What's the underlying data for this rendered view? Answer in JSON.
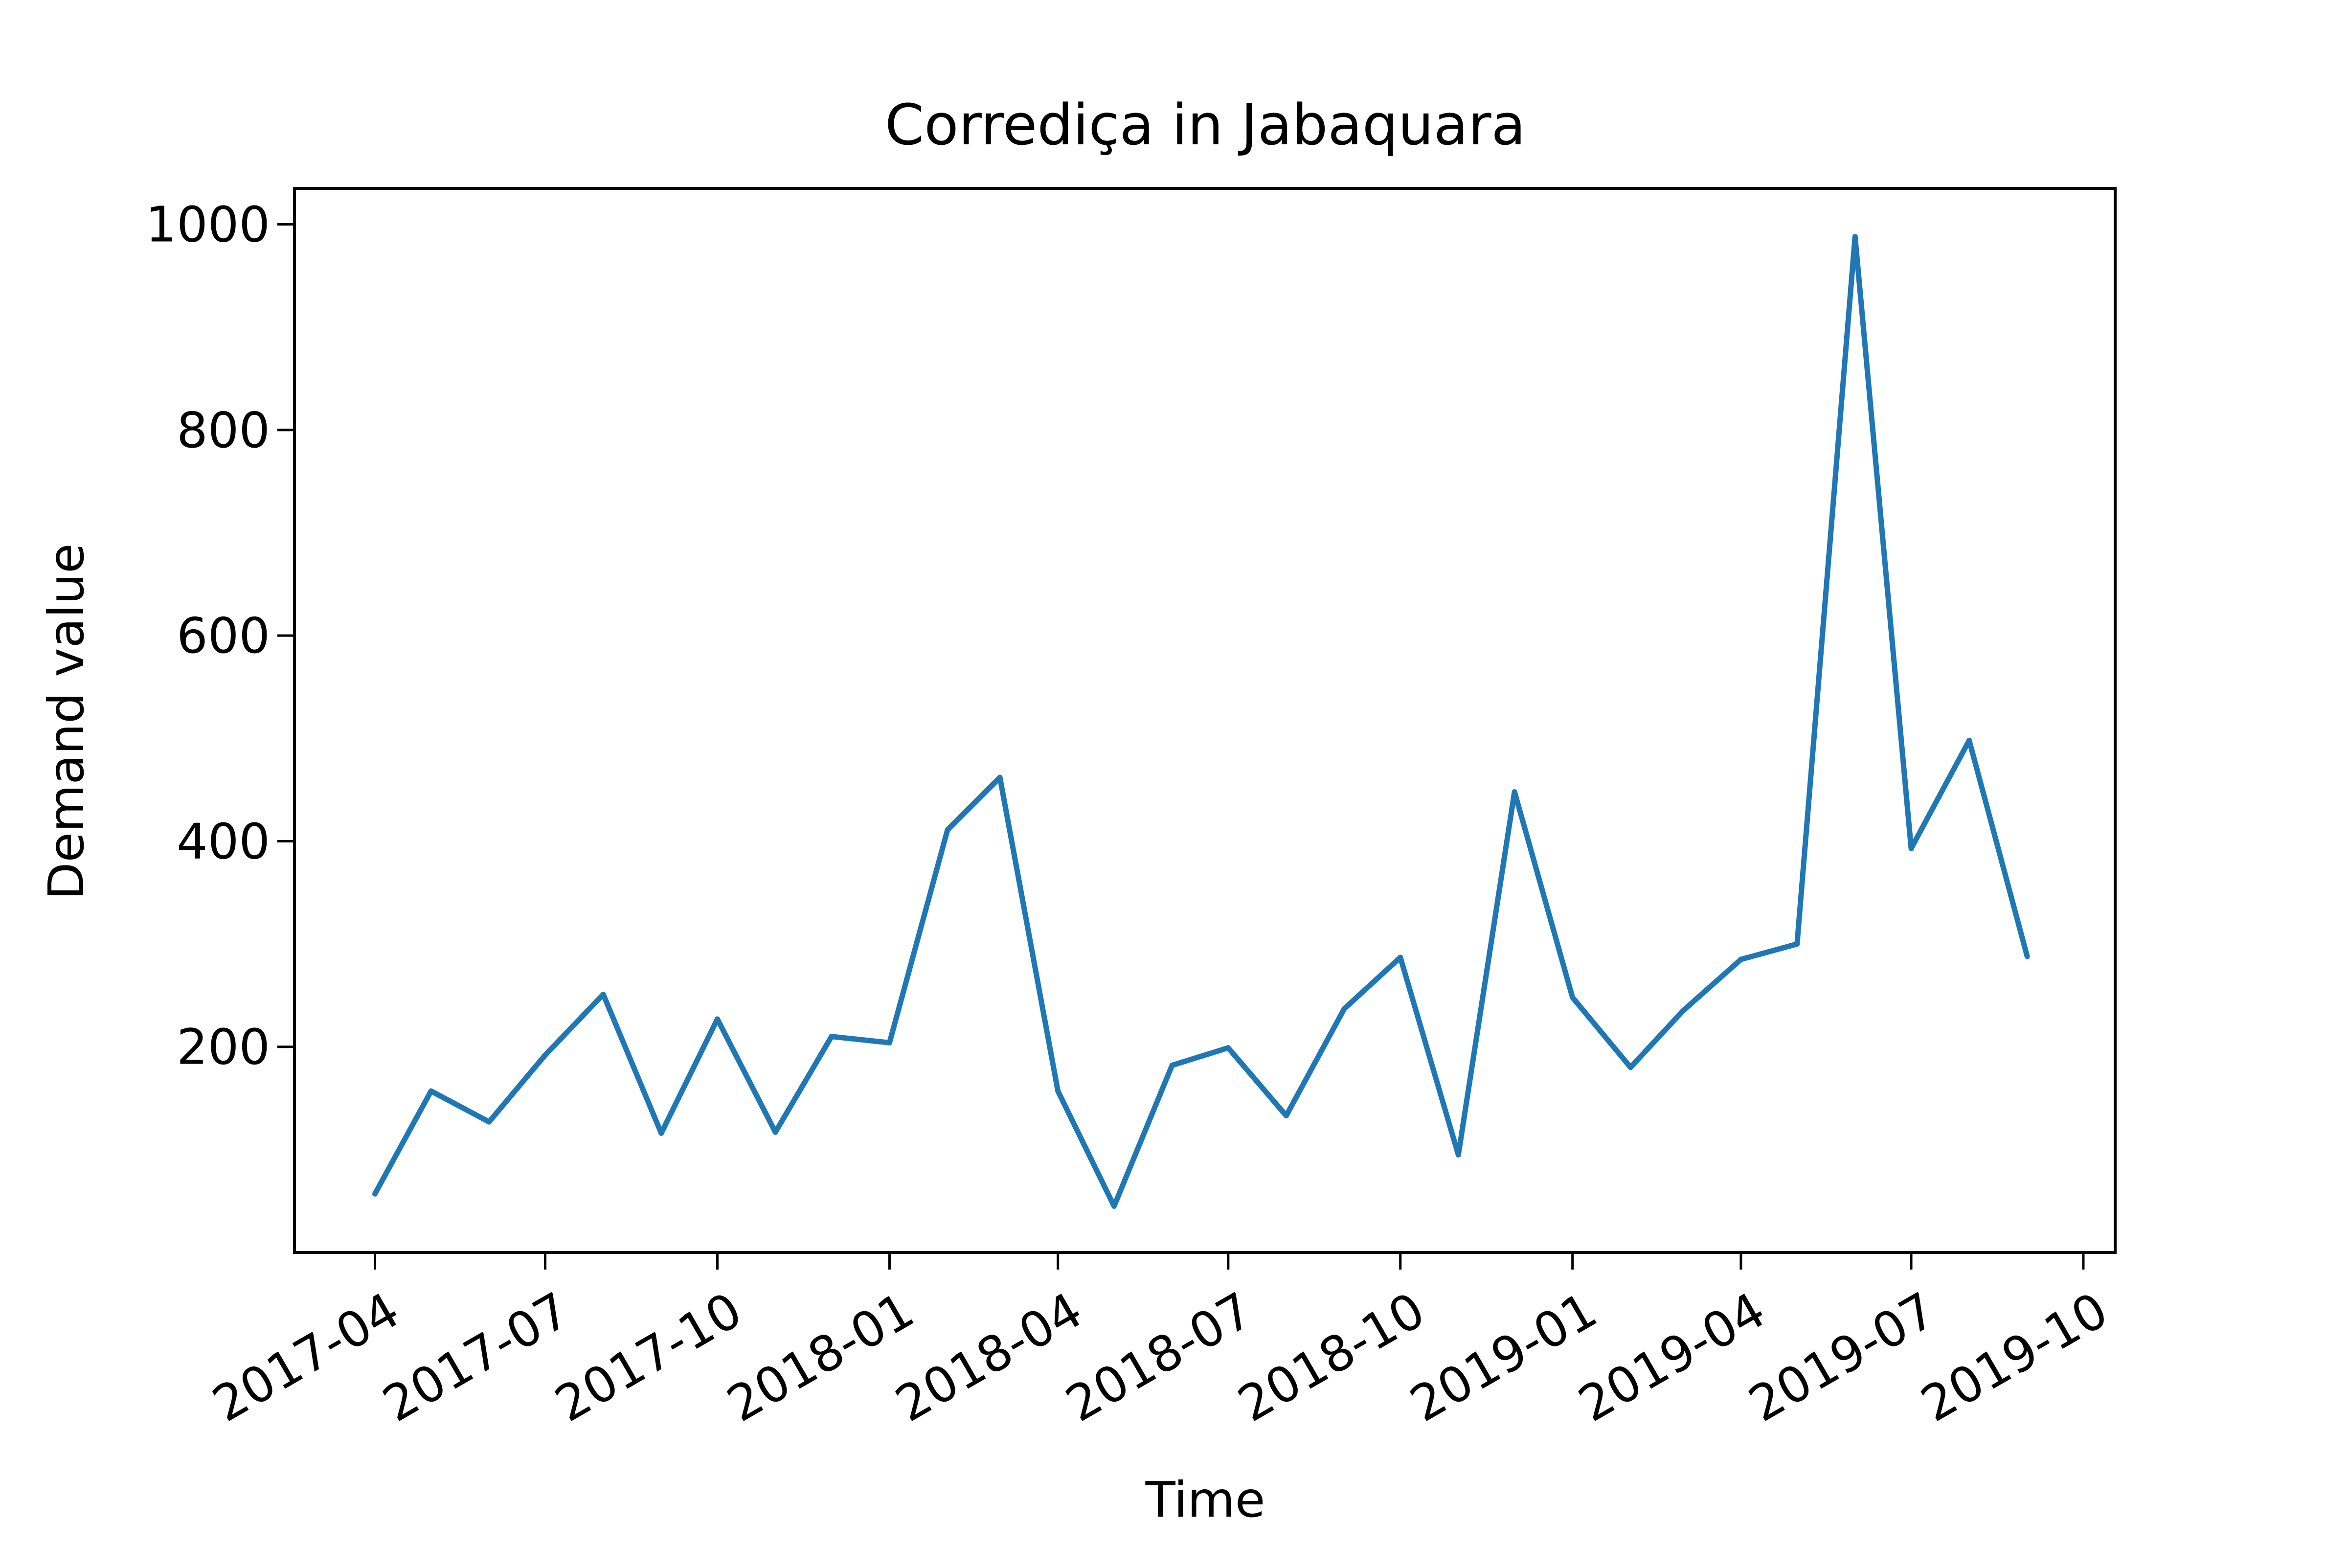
{
  "chart_data": {
    "type": "line",
    "title": "Corrediça in Jabaquara",
    "xlabel": "Time",
    "ylabel": "Demand value",
    "xlim": [
      "2017-02-17",
      "2019-10-18"
    ],
    "ylim": [
      0,
      1035
    ],
    "xticks": [
      "2017-04",
      "2017-07",
      "2017-10",
      "2018-01",
      "2018-04",
      "2018-07",
      "2018-10",
      "2019-01",
      "2019-04",
      "2019-07",
      "2019-10"
    ],
    "yticks": [
      200,
      400,
      600,
      800,
      1000
    ],
    "grid": false,
    "line_color": "#1f77b4",
    "series": [
      {
        "x": [
          "2017-04-01",
          "2017-05-01",
          "2017-06-01",
          "2017-07-01",
          "2017-08-01",
          "2017-09-01",
          "2017-10-01",
          "2017-11-01",
          "2017-12-01",
          "2018-01-01",
          "2018-02-01",
          "2018-03-01",
          "2018-04-01",
          "2018-05-01",
          "2018-06-01",
          "2018-07-01",
          "2018-08-01",
          "2018-09-01",
          "2018-10-01",
          "2018-11-01",
          "2018-12-01",
          "2019-01-01",
          "2019-02-01",
          "2019-03-01",
          "2019-04-01",
          "2019-05-01",
          "2019-06-01",
          "2019-07-01",
          "2019-08-01",
          "2019-09-01"
        ],
        "values": [
          57,
          157,
          127,
          192,
          251,
          116,
          227,
          117,
          210,
          204,
          411,
          462,
          157,
          45,
          182,
          199,
          133,
          237,
          287,
          95,
          448,
          248,
          180,
          235,
          285,
          300,
          988,
          393,
          498,
          288
        ]
      }
    ]
  }
}
